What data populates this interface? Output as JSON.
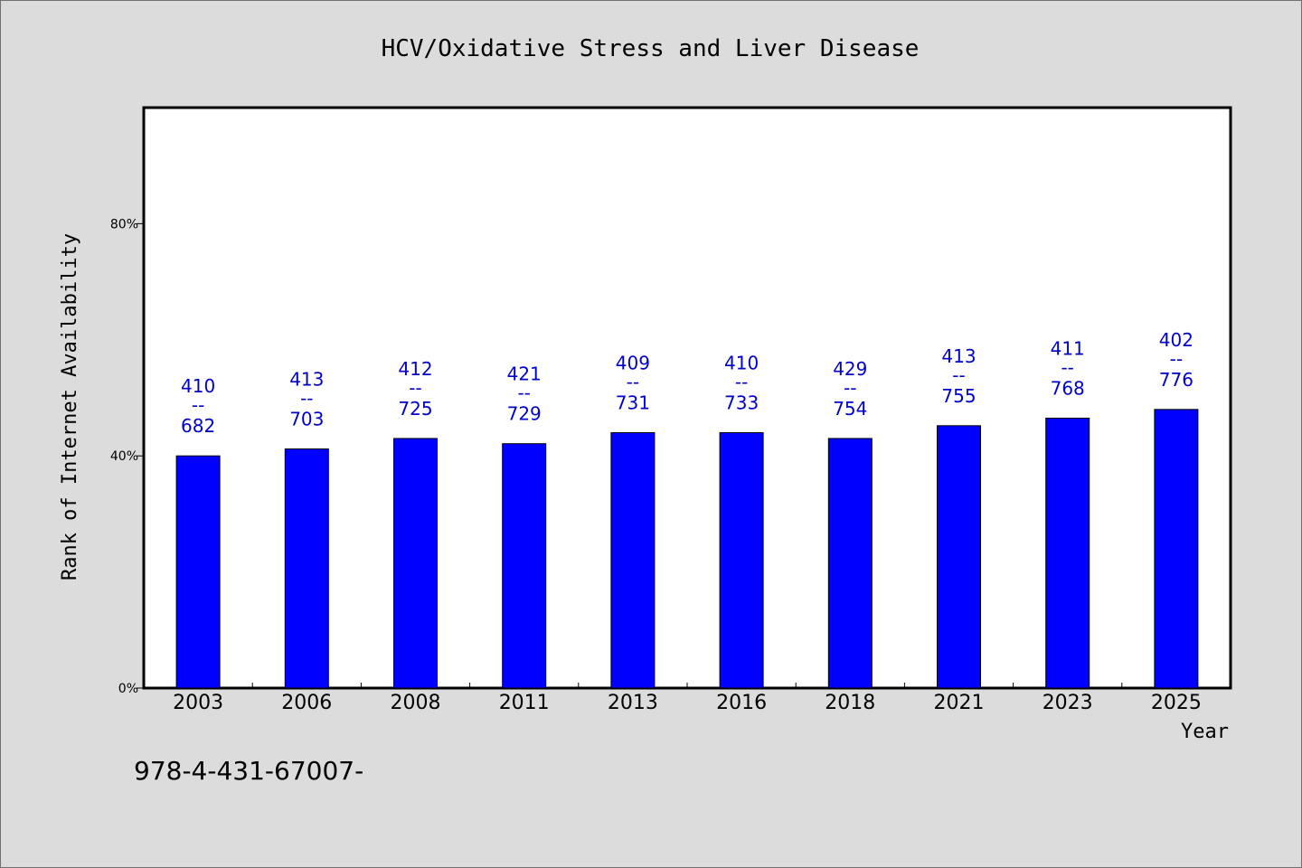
{
  "chart_data": {
    "type": "bar",
    "title": "HCV/Oxidative Stress and Liver Disease",
    "xlabel": "Year",
    "ylabel": "Rank of Internet Availability",
    "categories": [
      "2003",
      "2006",
      "2008",
      "2011",
      "2013",
      "2016",
      "2018",
      "2021",
      "2023",
      "2025"
    ],
    "values": [
      40.0,
      41.2,
      43.0,
      42.1,
      44.0,
      44.0,
      43.0,
      45.2,
      46.5,
      48.0
    ],
    "data_labels": [
      {
        "top": "410",
        "sep": "--",
        "bottom": "682"
      },
      {
        "top": "413",
        "sep": "--",
        "bottom": "703"
      },
      {
        "top": "412",
        "sep": "--",
        "bottom": "725"
      },
      {
        "top": "421",
        "sep": "--",
        "bottom": "729"
      },
      {
        "top": "409",
        "sep": "--",
        "bottom": "731"
      },
      {
        "top": "410",
        "sep": "--",
        "bottom": "733"
      },
      {
        "top": "429",
        "sep": "--",
        "bottom": "754"
      },
      {
        "top": "413",
        "sep": "--",
        "bottom": "755"
      },
      {
        "top": "411",
        "sep": "--",
        "bottom": "768"
      },
      {
        "top": "402",
        "sep": "--",
        "bottom": "776"
      }
    ],
    "ylim": [
      0,
      100
    ],
    "yticks": [
      {
        "value": 0,
        "label": "0%"
      },
      {
        "value": 40,
        "label": "40%"
      },
      {
        "value": 80,
        "label": "80%"
      }
    ],
    "grid": false,
    "bar_color": "#0000ff",
    "label_color": "#0000cc"
  },
  "footnote": "978-4-431-67007-"
}
